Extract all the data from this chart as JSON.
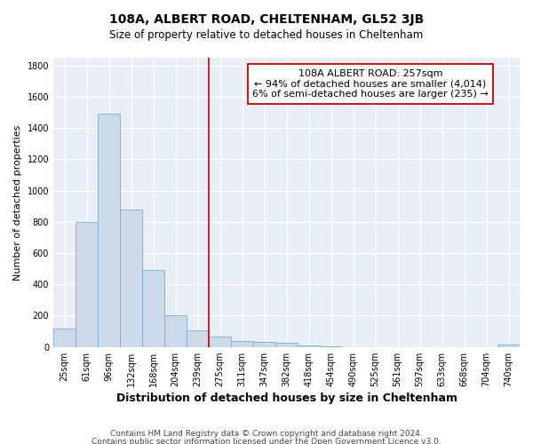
{
  "title": "108A, ALBERT ROAD, CHELTENHAM, GL52 3JB",
  "subtitle": "Size of property relative to detached houses in Cheltenham",
  "xlabel": "Distribution of detached houses by size in Cheltenham",
  "ylabel": "Number of detached properties",
  "categories": [
    "25sqm",
    "61sqm",
    "96sqm",
    "132sqm",
    "168sqm",
    "204sqm",
    "239sqm",
    "275sqm",
    "311sqm",
    "347sqm",
    "382sqm",
    "418sqm",
    "454sqm",
    "490sqm",
    "525sqm",
    "561sqm",
    "597sqm",
    "633sqm",
    "668sqm",
    "704sqm",
    "740sqm"
  ],
  "values": [
    120,
    800,
    1490,
    880,
    490,
    205,
    105,
    65,
    40,
    35,
    25,
    10,
    5,
    0,
    0,
    0,
    0,
    0,
    0,
    0,
    15
  ],
  "bar_color": "#ccd9e8",
  "bar_edge_color": "#7aaed4",
  "red_line_x": 6.5,
  "annotation_line1": "108A ALBERT ROAD: 257sqm",
  "annotation_line2": "← 94% of detached houses are smaller (4,014)",
  "annotation_line3": "6% of semi-detached houses are larger (235) →",
  "annotation_box_facecolor": "#ffffff",
  "annotation_box_edgecolor": "#cc0000",
  "red_line_color": "#cc0000",
  "footer_line1": "Contains HM Land Registry data © Crown copyright and database right 2024.",
  "footer_line2": "Contains public sector information licensed under the Open Government Licence v3.0.",
  "ylim": [
    0,
    1850
  ],
  "yticks": [
    0,
    200,
    400,
    600,
    800,
    1000,
    1200,
    1400,
    1600,
    1800
  ],
  "plot_bg_color": "#e8eef5",
  "grid_color": "#ffffff",
  "title_fontsize": 10,
  "subtitle_fontsize": 8.5,
  "ylabel_fontsize": 8,
  "xlabel_fontsize": 9,
  "tick_fontsize": 7,
  "annotation_fontsize": 8,
  "footer_fontsize": 6.5
}
